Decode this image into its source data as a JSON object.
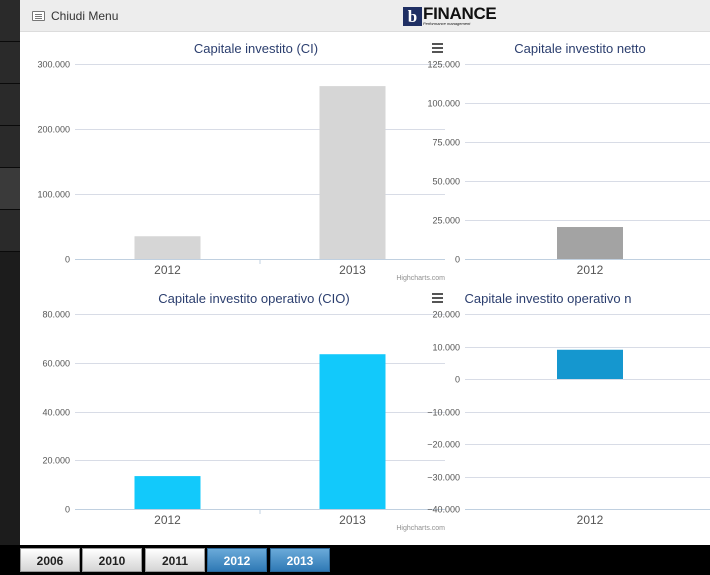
{
  "header": {
    "menu_label": "Chiudi Menu",
    "logo_letter": "b",
    "logo_word": "FINANCE",
    "logo_tagline": "Performance management"
  },
  "menu_icon": "menu-icon",
  "credits": "Highcharts.com",
  "colors": {
    "title": "#2b3e6e",
    "grid": "#d8dce6",
    "axis": "#c0d0e0",
    "ci": "#d6d6d6",
    "cin": "#a3a3a3",
    "cio": "#12c9fb",
    "cion": "#1597cf"
  },
  "chart_data": [
    {
      "type": "bar",
      "title": "Capitale investito (CI)",
      "categories": [
        "2012",
        "2013"
      ],
      "values": [
        35000,
        266000
      ],
      "ylim": [
        0,
        300000
      ],
      "ticks": [
        "0",
        "100.000",
        "200.000",
        "300.000"
      ],
      "tick_values": [
        0,
        100000,
        200000,
        300000
      ],
      "color": "#d6d6d6",
      "grid": true
    },
    {
      "type": "bar",
      "title": "Capitale investito netto",
      "categories": [
        "2012"
      ],
      "values": [
        20500
      ],
      "ylim": [
        0,
        125000
      ],
      "ticks": [
        "0",
        "25.000",
        "50.000",
        "75.000",
        "100.000",
        "125.000"
      ],
      "tick_values": [
        0,
        25000,
        50000,
        75000,
        100000,
        125000
      ],
      "color": "#a3a3a3",
      "grid": true
    },
    {
      "type": "bar",
      "title": "Capitale investito operativo (CIO)",
      "categories": [
        "2012",
        "2013"
      ],
      "values": [
        13500,
        63500
      ],
      "ylim": [
        0,
        80000
      ],
      "ticks": [
        "0",
        "20.000",
        "40.000",
        "60.000",
        "80.000"
      ],
      "tick_values": [
        0,
        20000,
        40000,
        60000,
        80000
      ],
      "color": "#12c9fb",
      "grid": true
    },
    {
      "type": "bar",
      "title": "Capitale investito operativo n",
      "categories": [
        "2012"
      ],
      "values": [
        9000
      ],
      "ylim": [
        -40000,
        20000
      ],
      "ticks": [
        "−40.000",
        "−30.000",
        "−20.000",
        "−10.000",
        "0",
        "10.000",
        "20.000"
      ],
      "tick_values": [
        -40000,
        -30000,
        -20000,
        -10000,
        0,
        10000,
        20000
      ],
      "color": "#1597cf",
      "grid": true
    }
  ],
  "year_tabs": [
    {
      "label": "2006",
      "active": false
    },
    {
      "label": "2010",
      "active": false
    },
    {
      "label": "2011",
      "active": false
    },
    {
      "label": "2012",
      "active": true
    },
    {
      "label": "2013",
      "active": true
    }
  ]
}
